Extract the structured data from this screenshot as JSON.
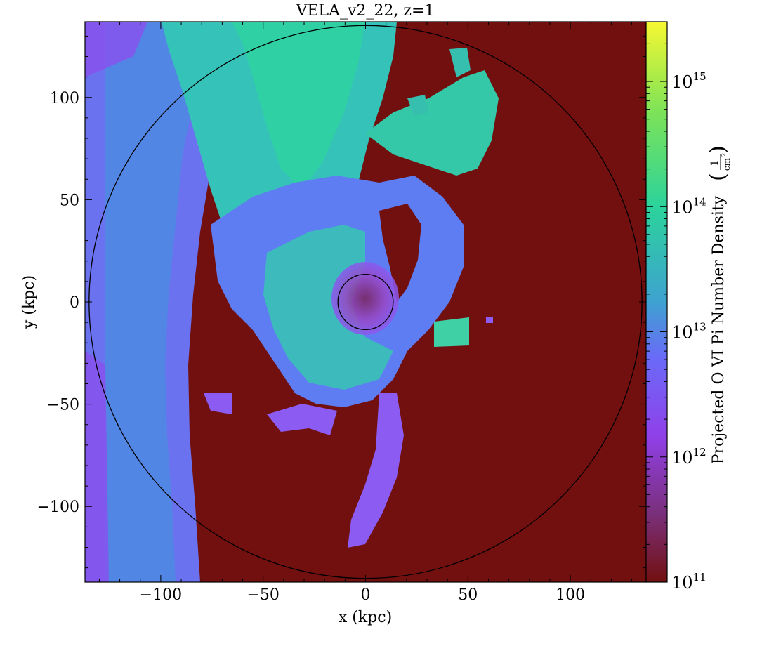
{
  "chart_data": {
    "type": "heatmap",
    "title": "VELA_v2_22, z=1",
    "xlabel": "x  (kpc)",
    "ylabel": "y  (kpc)",
    "xlim": [
      -137,
      137
    ],
    "ylim": [
      -137,
      137
    ],
    "x_ticks": [
      -100,
      -50,
      0,
      50,
      100
    ],
    "y_ticks": [
      -100,
      -50,
      0,
      50,
      100
    ],
    "x_tick_labels": [
      "−100",
      "−50",
      "0",
      "50",
      "100"
    ],
    "y_tick_labels": [
      "−100",
      "−50",
      "0",
      "50",
      "100"
    ],
    "colorbar": {
      "label": "Projected O VI Pi Number Density",
      "unit_numerator": "1",
      "unit_denominator": "cm",
      "unit_power": "2",
      "scale": "log",
      "range": [
        100000000000.0,
        3000000000000000.0
      ],
      "ticks": [
        {
          "value": 100000000000.0,
          "base": "10",
          "exp": "11"
        },
        {
          "value": 1000000000000.0,
          "base": "10",
          "exp": "12"
        },
        {
          "value": 10000000000000.0,
          "base": "10",
          "exp": "13"
        },
        {
          "value": 100000000000000.0,
          "base": "10",
          "exp": "14"
        },
        {
          "value": 1000000000000000.0,
          "base": "10",
          "exp": "15"
        }
      ],
      "colors_top_to_bottom": [
        "#f6f832",
        "#7de357",
        "#2bd39b",
        "#3ea2d0",
        "#6a6af8",
        "#9040e8",
        "#7a2f78",
        "#721010"
      ]
    },
    "background_color": "#721010",
    "circles": [
      {
        "cx": 0,
        "cy": 0,
        "r": 135
      },
      {
        "cx": 0,
        "cy": 0,
        "r": 13.5
      }
    ]
  }
}
